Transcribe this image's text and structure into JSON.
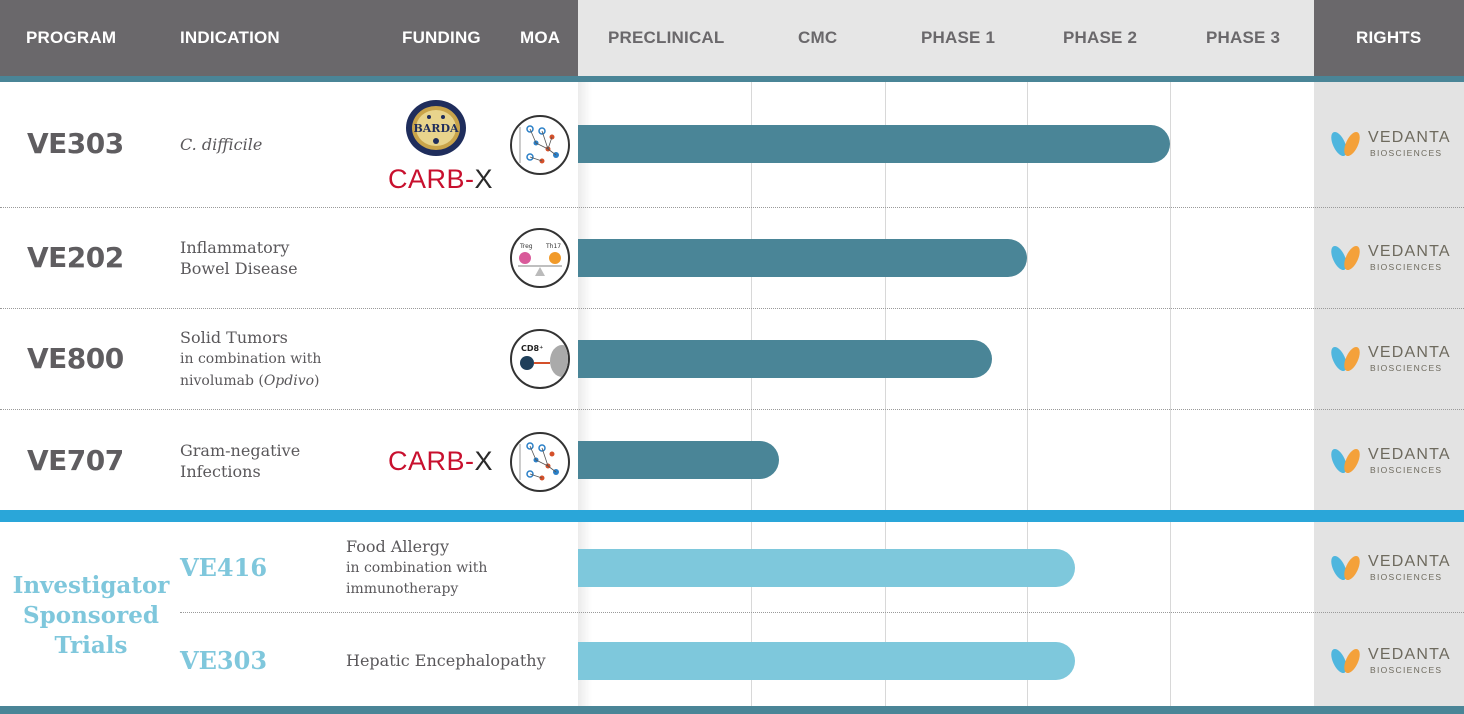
{
  "header": {
    "program": "PROGRAM",
    "indication": "INDICATION",
    "funding": "FUNDING",
    "moa": "MOA",
    "phases": [
      "PRECLINICAL",
      "CMC",
      "PHASE 1",
      "PHASE 2",
      "PHASE 3"
    ],
    "rights": "RIGHTS"
  },
  "colors": {
    "header_dark": "#6a686b",
    "bar_dark": "#4a8597",
    "bar_light": "#7ec8dc",
    "separator": "#2aa6d9",
    "ist_text": "#7fc7dc",
    "carbx_red": "#c8102e"
  },
  "rows": [
    {
      "program": "VE303",
      "indication": "C. difficile",
      "funding": [
        "BARDA",
        "CARB-X"
      ],
      "moa_icon": "microbial-network-icon",
      "progress_phase": "Phase 2 complete",
      "rights": "vedanta-logo"
    },
    {
      "program": "VE202",
      "indication_line1": "Inflammatory",
      "indication_line2": "Bowel Disease",
      "moa_icon": "treg-th17-balance-icon",
      "progress_phase": "Phase 1 complete",
      "rights": "vedanta-logo"
    },
    {
      "program": "VE800",
      "indication_line1": "Solid Tumors",
      "indication_line2": "in combination with",
      "indication_line3_pre": "nivolumab (",
      "indication_line3_em": "Opdivo",
      "indication_line3_post": ")",
      "moa_icon": "cd8-tcell-icon",
      "progress_phase": "Phase 1",
      "rights": "vedanta-logo"
    },
    {
      "program": "VE707",
      "indication_line1": "Gram-negative",
      "indication_line2": "Infections",
      "funding": [
        "CARB-X"
      ],
      "moa_icon": "microbial-network-icon",
      "progress_phase": "Preclinical complete",
      "rights": "vedanta-logo"
    }
  ],
  "ist": {
    "label_line1": "Investigator",
    "label_line2": "Sponsored",
    "label_line3": "Trials",
    "rows": [
      {
        "program": "VE416",
        "indication_line1": "Food Allergy",
        "indication_line2": "in combination with",
        "indication_line3": "immunotherapy",
        "progress_phase": "Phase 2",
        "rights": "vedanta-logo"
      },
      {
        "program": "VE303",
        "indication": "Hepatic Encephalopathy",
        "progress_phase": "Phase 2",
        "rights": "vedanta-logo"
      }
    ]
  },
  "funding_text": {
    "barda": "BARDA",
    "carb": "CARB-",
    "x": "X"
  },
  "vedanta": {
    "name": "VEDANTA",
    "sub": "BIOSCIENCES"
  },
  "moa_labels": {
    "treg": "Treg",
    "th17": "Th17",
    "cd8": "CD8⁺"
  }
}
